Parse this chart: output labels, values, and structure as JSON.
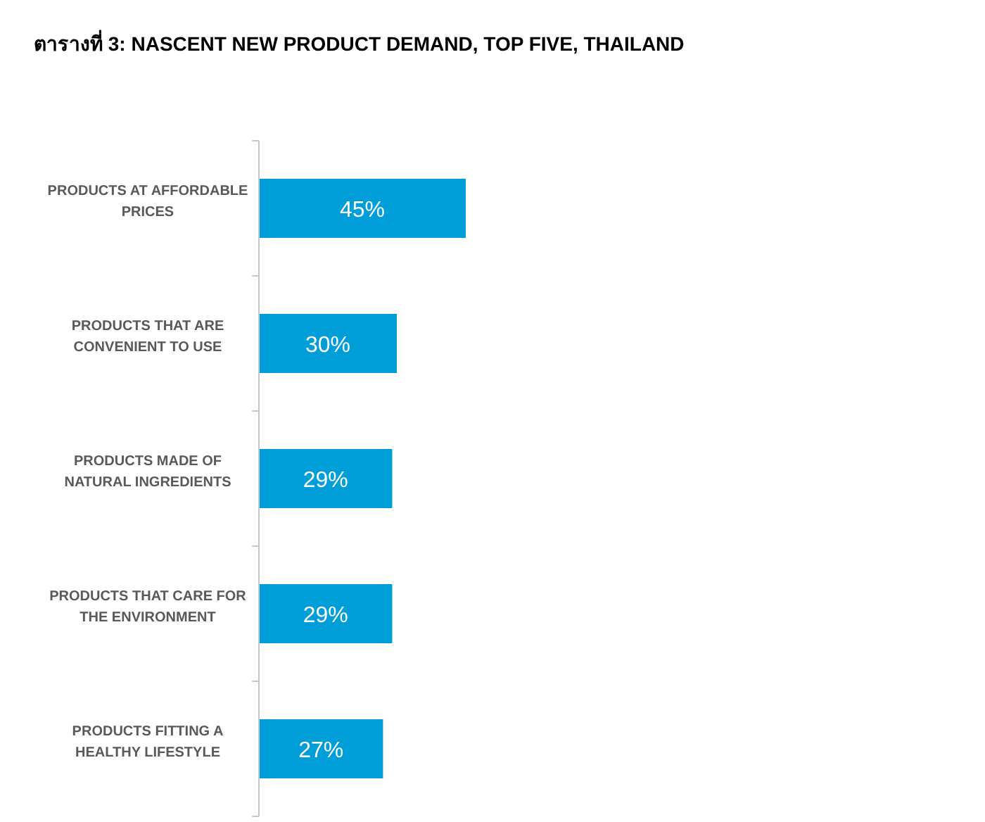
{
  "chart_data": {
    "type": "bar",
    "orientation": "horizontal",
    "title": "ตารางที่ 3: NASCENT NEW PRODUCT DEMAND, TOP FIVE, THAILAND",
    "categories": [
      "PRODUCTS AT AFFORDABLE PRICES",
      "PRODUCTS THAT ARE CONVENIENT TO USE",
      "PRODUCTS MADE OF NATURAL INGREDIENTS",
      "PRODUCTS THAT CARE FOR THE ENVIRONMENT",
      "PRODUCTS FITTING A HEALTHY LIFESTYLE"
    ],
    "values": [
      45,
      30,
      29,
      29,
      27
    ],
    "value_labels": [
      "45%",
      "30%",
      "29%",
      "29%",
      "27%"
    ],
    "color": "#009ed8"
  }
}
